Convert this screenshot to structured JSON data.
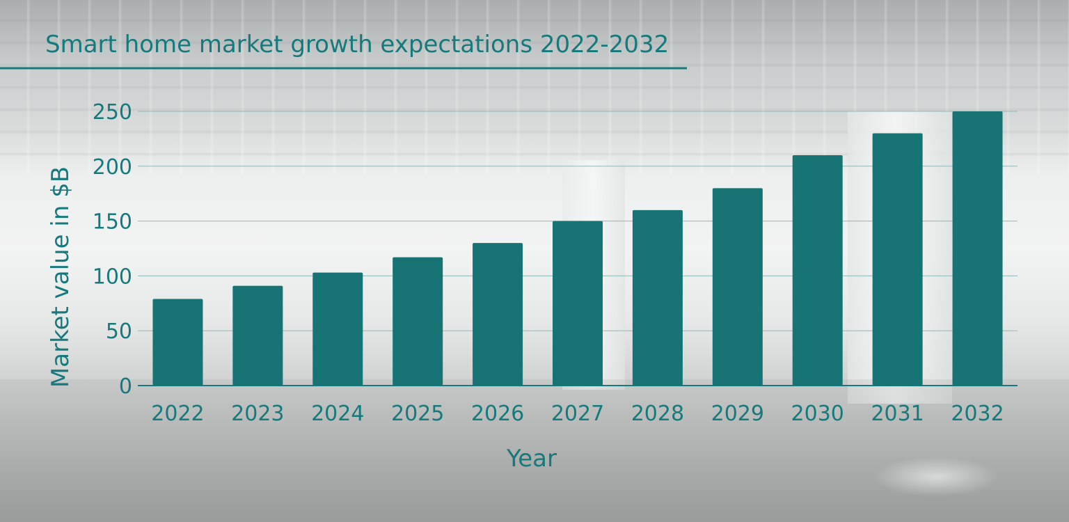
{
  "colors": {
    "accent": "#16797b",
    "bar": "#177374",
    "grid": "#8fb8b8"
  },
  "chart_data": {
    "type": "bar",
    "title": "Smart home market growth expectations 2022-2032",
    "xlabel": "Year",
    "ylabel": "Market value in $B",
    "categories": [
      "2022",
      "2023",
      "2024",
      "2025",
      "2026",
      "2027",
      "2028",
      "2029",
      "2030",
      "2031",
      "2032"
    ],
    "values": [
      79,
      91,
      103,
      117,
      130,
      150,
      160,
      180,
      210,
      230,
      250
    ],
    "ylim": [
      0,
      250
    ],
    "yticks": [
      "0",
      "50",
      "100",
      "150",
      "200",
      "250"
    ],
    "grid": true,
    "legend": false
  }
}
